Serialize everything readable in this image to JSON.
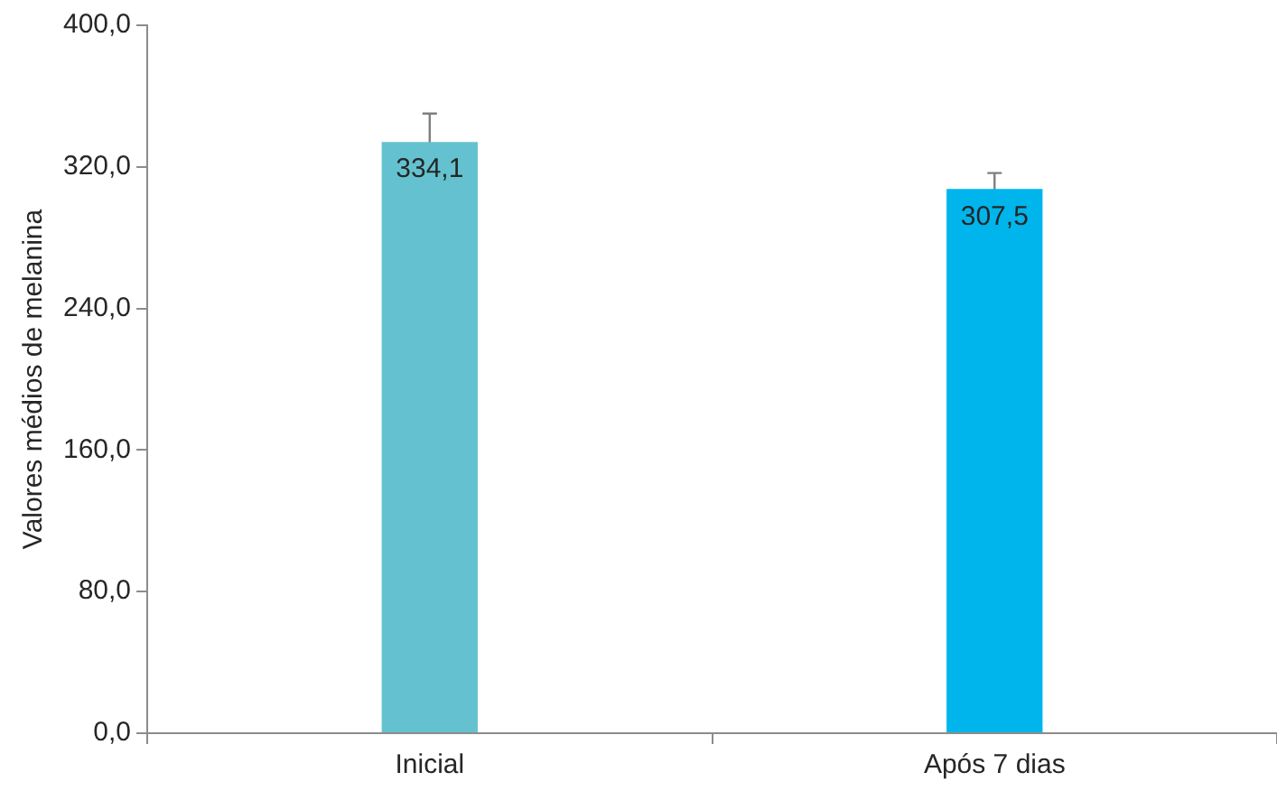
{
  "chart_data": {
    "type": "bar",
    "ylabel": "Valores médios de melanina",
    "categories": [
      "Inicial",
      "Após 7 dias"
    ],
    "values": [
      334.1,
      307.5
    ],
    "colors": [
      "#64c2d0",
      "#00b5ec"
    ],
    "errors": [
      16,
      9
    ],
    "value_labels": [
      "334,1",
      "307,5"
    ],
    "ylim": [
      0,
      400
    ],
    "yticks": [
      {
        "value": 0,
        "label": "0,0"
      },
      {
        "value": 80,
        "label": "80,0"
      },
      {
        "value": 160,
        "label": "160,0"
      },
      {
        "value": 240,
        "label": "240,0"
      },
      {
        "value": 320,
        "label": "320,0"
      },
      {
        "value": 400,
        "label": "400,0"
      }
    ],
    "grid": false,
    "legend": false
  }
}
